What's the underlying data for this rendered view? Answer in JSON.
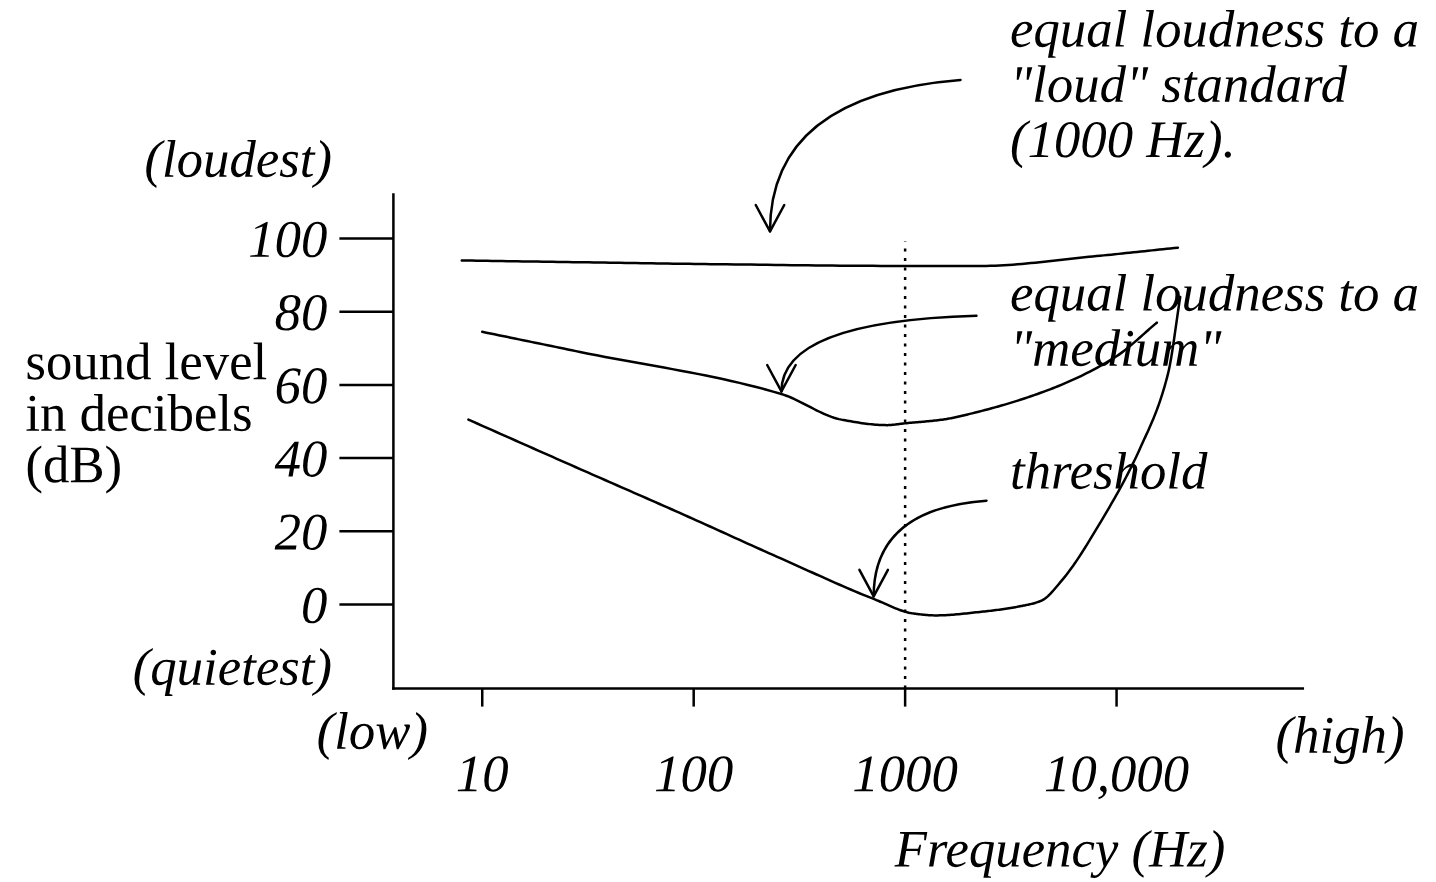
{
  "chart_data": {
    "type": "line",
    "xlabel": "Frequency (Hz)",
    "ylabel": "sound level\nin decibels\n(dB)",
    "log": "x",
    "xlim": [
      3.8,
      76000
    ],
    "xticks": [
      10,
      100,
      1000,
      {
        "value": 10000,
        "label": "10,000"
      }
    ],
    "ylim": [
      -23,
      112
    ],
    "yticks": [
      0,
      20,
      40,
      60,
      80,
      100
    ],
    "line_style": "solid",
    "series": [
      {
        "color": "#000000",
        "x": [
          8,
          30,
          120,
          1000,
          2300,
          7400,
          19500
        ],
        "values": [
          94,
          93.5,
          93,
          92.5,
          92.5,
          95,
          97.5
        ]
      },
      {
        "color": "#000000",
        "x": [
          10,
          29,
          260,
          500,
          820,
          1000,
          1500,
          2000,
          4700,
          9800,
          15500
        ],
        "values": [
          74.5,
          69,
          57.5,
          50.5,
          49,
          49.5,
          50.5,
          52,
          58.5,
          67.5,
          77
        ]
      },
      {
        "color": "#000000",
        "x": [
          8.6,
          29,
          86,
          260,
          710,
          1100,
          1400,
          2300,
          3500,
          4400,
          5500,
          8500,
          13000,
          17500,
          20000
        ],
        "values": [
          50.5,
          37,
          25,
          12.5,
          1.5,
          -2.5,
          -3,
          -2,
          -0.5,
          1,
          6.5,
          23,
          43,
          63,
          84
        ]
      }
    ],
    "ref_lines": [
      {
        "axis": "x",
        "value": 1000,
        "color": "#000000",
        "line_style": "dotted"
      }
    ],
    "annotations": [
      "(loudest)",
      "(quietest)",
      "(low)",
      "(high)",
      "equal loudness to a\n\"loud\" standard\n(1000 Hz).",
      {
        "text": "equal loudness to a\n\"medium\"",
        "x": 260,
        "y": 57.5
      },
      {
        "text": "threshold",
        "x": 710,
        "y": 1.5
      }
    ]
  }
}
